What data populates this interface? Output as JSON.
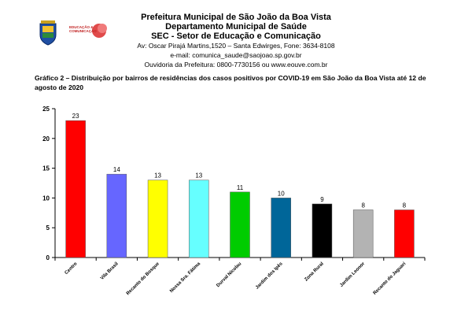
{
  "header": {
    "line1": "Prefeitura Municipal de São João da Boa Vista",
    "line2": "Departamento Municipal de Saúde",
    "line3": "SEC - Setor de Educação e Comunicação",
    "line4": "Av: Oscar Pirajá Martins,1520 – Santa Edwirges, Fone: 3634-8108",
    "line5": "e-mail: comunica_saude@saojoao.sp.gov.br",
    "line6": "Ouvidoria da Prefeitura: 0800-7730156 ou www.eouve.com.br"
  },
  "logos": {
    "sec_logo_text": "EDUCAÇÃO & COMUNICAÇÃO"
  },
  "chart_data": {
    "type": "bar",
    "title": "Gráfico 2 – Distribuição por bairros de residências dos casos positivos por COVID-19 em São João da Boa Vista até 12 de agosto de 2020",
    "categories": [
      "Centro",
      "Vila Brasil",
      "Recanto do Bosque",
      "Nossa Sra. Fátima",
      "Durval Nicolau",
      "Jardim dos Ipês",
      "Zona Rural",
      "Jardim Leonor",
      "Recanto do Jaguari"
    ],
    "values": [
      23,
      14,
      13,
      13,
      11,
      10,
      9,
      8,
      8
    ],
    "colors": [
      "#ff0000",
      "#6666ff",
      "#ffff00",
      "#66ffff",
      "#00cc00",
      "#006699",
      "#000000",
      "#b3b3b3",
      "#ff0000"
    ],
    "yticks": [
      0,
      5,
      10,
      15,
      20,
      25
    ],
    "ylim": [
      0,
      25
    ],
    "grid": false,
    "data_labels": true
  }
}
